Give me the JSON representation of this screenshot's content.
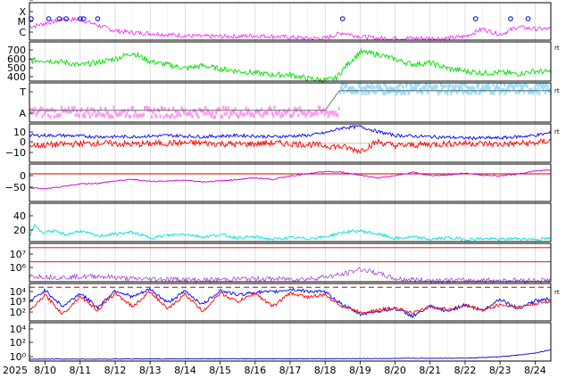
{
  "chart_data": {
    "type": "line",
    "x_start_label": "2025",
    "x_tick_labels": [
      "8/10",
      "8/11",
      "8/12",
      "8/13",
      "8/14",
      "8/15",
      "8/16",
      "8/17",
      "8/18",
      "8/19",
      "8/20",
      "8/21",
      "8/22",
      "8/23",
      "8/24"
    ],
    "x_range_days": [
      9.55,
      24.45
    ],
    "grid": true,
    "panels": [
      {
        "id": "xray-class",
        "type": "line",
        "tick_labels": [
          "X",
          "M",
          "C"
        ],
        "color": "#ff00ff",
        "flare_markers_x": [
          9.6,
          10.1,
          10.4,
          10.6,
          11.0,
          11.1,
          11.5,
          18.5,
          22.3,
          23.3,
          23.8
        ],
        "points_x": [
          9.55,
          10.0,
          10.5,
          11.0,
          11.5,
          12.0,
          12.5,
          13.0,
          13.5,
          14.0,
          14.5,
          15.0,
          15.5,
          16.0,
          16.5,
          17.0,
          17.5,
          18.0,
          18.5,
          19.0,
          19.5,
          20.0,
          20.5,
          21.0,
          21.5,
          22.0,
          22.5,
          23.0,
          23.5,
          24.0,
          24.45
        ],
        "points_y": [
          0.35,
          0.45,
          0.55,
          0.55,
          0.4,
          0.25,
          0.2,
          0.18,
          0.15,
          0.12,
          0.1,
          0.1,
          0.1,
          0.12,
          0.1,
          0.08,
          0.05,
          0.05,
          0.2,
          0.1,
          0.05,
          0.05,
          0.05,
          0.05,
          0.05,
          0.1,
          0.3,
          0.15,
          0.35,
          0.3,
          0.3
        ]
      },
      {
        "id": "wind-speed",
        "type": "line",
        "tick_labels": [
          "700",
          "600",
          "500",
          "400"
        ],
        "ylim": [
          330,
          760
        ],
        "color": "#00e000",
        "points_x": [
          9.55,
          10.0,
          10.5,
          11.0,
          11.5,
          12.0,
          12.5,
          13.0,
          13.5,
          14.0,
          14.5,
          15.0,
          15.5,
          16.0,
          16.5,
          17.0,
          17.5,
          18.0,
          18.3,
          18.6,
          19.0,
          19.5,
          20.0,
          20.5,
          21.0,
          21.5,
          22.0,
          22.5,
          23.0,
          23.5,
          24.0,
          24.45
        ],
        "points_y": [
          555,
          560,
          540,
          505,
          535,
          575,
          640,
          545,
          510,
          470,
          500,
          465,
          440,
          420,
          400,
          400,
          360,
          340,
          360,
          500,
          650,
          625,
          570,
          515,
          530,
          470,
          440,
          420,
          425,
          410,
          440,
          430
        ]
      },
      {
        "id": "imf-direction",
        "type": "scatter",
        "tick_labels": [
          "T",
          "A"
        ],
        "series": [
          {
            "name": "",
            "color": "#ff99ee",
            "x_range": [
              9.55,
              18.4
            ],
            "level": 0.25
          },
          {
            "name": "",
            "color": "#99ddff",
            "x_range": [
              18.4,
              24.45
            ],
            "level": 0.85
          }
        ],
        "step_x": [
          9.55,
          18.0,
          18.4,
          24.45
        ],
        "step_y": [
          0.3,
          0.3,
          0.8,
          0.8
        ]
      },
      {
        "id": "imf-bt-bz",
        "type": "line",
        "tick_labels": [
          "10",
          "0",
          "−10"
        ],
        "ylim": [
          -15,
          15
        ],
        "series": [
          {
            "name": "",
            "color": "#0000ff",
            "points_x": [
              9.55,
              10.5,
              11.5,
              12.5,
              13.5,
              14.5,
              15.5,
              16.5,
              17.5,
              18.0,
              18.5,
              19.0,
              19.5,
              20.0,
              21.0,
              22.0,
              23.0,
              24.0,
              24.45
            ],
            "points_y": [
              6,
              6,
              5,
              5,
              6,
              5,
              6,
              5,
              6,
              8,
              12,
              13,
              9,
              6,
              5,
              4,
              4,
              6,
              8
            ]
          },
          {
            "name": "",
            "color": "#ff0000",
            "points_x": [
              9.55,
              10.5,
              11.5,
              12.5,
              13.5,
              14.5,
              15.5,
              16.5,
              17.5,
              18.0,
              18.5,
              19.0,
              19.5,
              20.0,
              21.0,
              22.0,
              23.0,
              24.0,
              24.45
            ],
            "points_y": [
              -2,
              -1,
              0,
              -1,
              0,
              0,
              -1,
              0,
              -1,
              -2,
              -3,
              -6,
              1,
              -2,
              -1,
              0,
              -1,
              0,
              2
            ]
          }
        ]
      },
      {
        "id": "dst",
        "type": "line",
        "tick_labels": [
          "0",
          "−50"
        ],
        "ylim": [
          -70,
          25
        ],
        "color": "#cc00cc",
        "ref_line": 0,
        "points_x": [
          9.55,
          10.0,
          10.5,
          11.0,
          11.5,
          12.0,
          12.5,
          13.0,
          13.5,
          14.0,
          14.5,
          15.0,
          15.5,
          16.0,
          16.5,
          17.0,
          17.5,
          18.0,
          18.5,
          19.0,
          19.5,
          20.0,
          20.5,
          21.0,
          21.5,
          22.0,
          22.5,
          23.0,
          23.5,
          24.0,
          24.45
        ],
        "points_y": [
          -35,
          -38,
          -33,
          -25,
          -24,
          -18,
          -14,
          -19,
          -18,
          -16,
          -20,
          -18,
          -14,
          -10,
          -14,
          -5,
          0,
          6,
          4,
          -3,
          -10,
          -5,
          4,
          -4,
          -3,
          2,
          -3,
          -5,
          0,
          7,
          10
        ]
      },
      {
        "id": "density",
        "type": "line",
        "tick_labels": [
          "40",
          "20"
        ],
        "ylim": [
          0,
          50
        ],
        "color": "#00e0e0",
        "points_x": [
          9.55,
          9.7,
          9.9,
          10.2,
          10.6,
          11.0,
          11.5,
          12.0,
          12.5,
          13.0,
          13.5,
          14.0,
          14.5,
          15.0,
          15.5,
          16.0,
          16.5,
          17.0,
          17.5,
          18.0,
          18.5,
          19.0,
          19.5,
          20.0,
          20.5,
          21.0,
          21.5,
          22.0,
          22.5,
          23.0,
          23.5,
          24.0,
          24.45
        ],
        "points_y": [
          6,
          22,
          12,
          14,
          9,
          14,
          7,
          10,
          12,
          5,
          8,
          10,
          6,
          9,
          5,
          6,
          3,
          5,
          4,
          6,
          12,
          14,
          10,
          4,
          6,
          3,
          5,
          3,
          4,
          3,
          4,
          3,
          4
        ]
      },
      {
        "id": "proton-flux",
        "type": "line",
        "tick_labels": [
          "10⁷",
          "10⁶"
        ],
        "ylim_log": [
          4.6,
          7.3
        ],
        "color": "#9933cc",
        "ref_lines_log": [
          7,
          6
        ],
        "points_x": [
          9.55,
          10.5,
          11.5,
          12.5,
          13.5,
          14.5,
          15.5,
          16.5,
          17.5,
          18.5,
          19.0,
          19.5,
          20.0,
          21.0,
          22.0,
          23.0,
          24.0,
          24.45
        ],
        "points_y_log": [
          5.0,
          4.9,
          5.0,
          4.8,
          4.8,
          4.7,
          4.8,
          4.8,
          4.8,
          5.1,
          5.5,
          5.2,
          4.8,
          4.7,
          4.7,
          4.7,
          4.7,
          4.7
        ]
      },
      {
        "id": "electron-flux",
        "type": "line",
        "tick_labels": [
          "10⁴",
          "10³",
          "10²",
          "10¹"
        ],
        "ylim_log": [
          0.5,
          4.4
        ],
        "ref_line_log": 4,
        "series": [
          {
            "name": "",
            "color": "#0000ff",
            "points_x": [
              9.55,
              10.0,
              10.5,
              11.0,
              11.5,
              12.0,
              12.5,
              13.0,
              13.5,
              14.0,
              14.5,
              15.0,
              15.5,
              16.0,
              16.5,
              17.0,
              17.5,
              18.0,
              18.5,
              19.0,
              19.5,
              20.0,
              20.5,
              21.0,
              21.5,
              22.0,
              22.5,
              23.0,
              23.5,
              24.0,
              24.45
            ],
            "points_y_log": [
              2.5,
              3.7,
              2.0,
              3.4,
              1.9,
              3.7,
              3.0,
              3.8,
              2.4,
              3.6,
              2.2,
              3.7,
              3.2,
              3.5,
              3.5,
              3.8,
              3.6,
              3.5,
              2.2,
              1.2,
              1.5,
              1.8,
              1.0,
              2.0,
              1.5,
              2.2,
              1.6,
              2.8,
              1.8,
              2.6,
              2.8
            ]
          },
          {
            "name": "",
            "color": "#ff0000",
            "points_x": [
              9.55,
              10.0,
              10.5,
              11.0,
              11.5,
              12.0,
              12.5,
              13.0,
              13.5,
              14.0,
              14.5,
              15.0,
              15.5,
              16.0,
              16.5,
              17.0,
              17.5,
              18.0,
              18.5,
              19.0,
              19.5,
              20.0,
              20.5,
              21.0,
              21.5,
              22.0,
              22.5,
              23.0,
              23.5,
              24.0,
              24.45
            ],
            "points_y_log": [
              1.5,
              3.2,
              1.2,
              3.1,
              1.6,
              3.4,
              2.0,
              3.6,
              1.7,
              3.3,
              1.5,
              3.4,
              2.5,
              3.4,
              2.0,
              3.4,
              3.0,
              3.2,
              2.0,
              1.4,
              1.6,
              1.9,
              1.3,
              2.0,
              1.7,
              2.1,
              1.6,
              2.2,
              1.9,
              2.3,
              2.5
            ]
          }
        ]
      },
      {
        "id": "low-flux",
        "type": "line",
        "tick_labels": [
          "10⁴",
          "10²",
          "10⁰"
        ],
        "ylim_log": [
          -1.2,
          4.6
        ],
        "color": "#0000cc",
        "points_x": [
          9.55,
          12.0,
          15.0,
          18.0,
          20.0,
          22.0,
          23.0,
          23.5,
          24.0,
          24.45
        ],
        "points_y_log": [
          -0.9,
          -0.9,
          -0.85,
          -0.85,
          -0.8,
          -0.75,
          -0.55,
          -0.3,
          0.0,
          0.5
        ]
      }
    ]
  }
}
